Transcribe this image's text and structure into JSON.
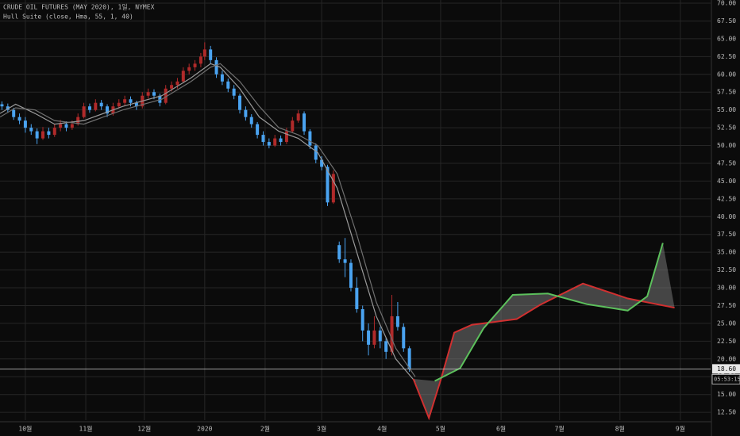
{
  "chart_data": {
    "type": "candlestick",
    "title": "CRUDE OIL FUTURES (MAY 2020), 1일, NYMEX",
    "subtitle": "Hull Suite (close, Hma, 55, 1, 40)",
    "up_color": "#b02a2a",
    "down_color": "#4aa3f0",
    "x": [
      -12,
      -9,
      -6,
      -3,
      0,
      3,
      6,
      9,
      12,
      15,
      18,
      21,
      24,
      27,
      30,
      33,
      36,
      39,
      42,
      45,
      48,
      51,
      54,
      57,
      60,
      63,
      66,
      69,
      72,
      75,
      78,
      81,
      84,
      87,
      90,
      92,
      95,
      98,
      101,
      104,
      107,
      110,
      113,
      116,
      119,
      122,
      125,
      128,
      131,
      134,
      137,
      140,
      143,
      146,
      149,
      152,
      155,
      158,
      161,
      164,
      167,
      170,
      173,
      176,
      179,
      182,
      185,
      188,
      191,
      194,
      197
    ],
    "open": [
      55.8,
      55.5,
      55.0,
      54.0,
      53.5,
      52.5,
      52.0,
      51.0,
      52.0,
      51.5,
      52.5,
      53.0,
      52.5,
      53.0,
      54.0,
      55.5,
      55.0,
      56.0,
      55.5,
      54.5,
      55.5,
      56.0,
      56.5,
      56.0,
      55.5,
      57.0,
      57.5,
      57.0,
      56.0,
      58.0,
      58.5,
      59.0,
      60.5,
      61.0,
      61.5,
      62.5,
      63.5,
      62.0,
      60.0,
      59.0,
      58.0,
      57.0,
      55.0,
      54.0,
      53.0,
      51.5,
      50.5,
      50.0,
      51.0,
      50.5,
      52.0,
      53.5,
      54.5,
      52.0,
      50.0,
      48.0,
      47.0,
      42.0,
      36.0,
      34.0,
      33.5,
      30.0,
      27.0,
      24.0,
      22.0,
      24.0,
      22.5,
      21.0,
      26.0,
      24.5,
      21.5
    ],
    "high": [
      56.2,
      55.9,
      55.3,
      54.5,
      54.0,
      53.0,
      52.4,
      52.6,
      52.5,
      53.0,
      53.6,
      53.4,
      53.5,
      54.5,
      56.0,
      55.9,
      56.5,
      56.4,
      55.8,
      56.0,
      56.5,
      57.0,
      56.9,
      56.3,
      57.5,
      58.0,
      57.9,
      57.3,
      58.5,
      59.0,
      59.5,
      61.0,
      61.5,
      62.0,
      63.0,
      64.5,
      64.0,
      62.4,
      60.5,
      59.4,
      58.5,
      57.3,
      55.5,
      54.4,
      53.3,
      52.0,
      51.0,
      51.5,
      51.4,
      52.5,
      54.0,
      55.0,
      54.8,
      52.3,
      50.3,
      48.5,
      47.3,
      46.5,
      36.5,
      37.0,
      34.0,
      31.5,
      27.5,
      25.0,
      26.0,
      24.5,
      23.0,
      29.0,
      28.0,
      25.0,
      21.8
    ],
    "low": [
      55.0,
      54.6,
      53.6,
      53.0,
      51.8,
      51.5,
      50.2,
      50.8,
      51.0,
      51.2,
      52.0,
      52.0,
      52.2,
      52.8,
      53.8,
      54.6,
      54.8,
      55.0,
      54.0,
      54.2,
      55.2,
      55.6,
      55.5,
      55.0,
      55.2,
      56.6,
      56.5,
      55.5,
      55.8,
      57.6,
      58.0,
      58.8,
      60.0,
      60.5,
      61.0,
      62.0,
      61.5,
      59.5,
      58.5,
      57.5,
      56.5,
      54.5,
      53.5,
      52.5,
      51.0,
      50.0,
      49.6,
      49.8,
      50.0,
      50.2,
      51.8,
      53.2,
      51.5,
      49.5,
      47.5,
      46.5,
      41.5,
      41.8,
      33.5,
      31.5,
      29.5,
      26.5,
      22.5,
      20.5,
      21.5,
      21.5,
      20.0,
      20.5,
      24.0,
      21.0,
      18.2
    ],
    "close": [
      55.5,
      55.0,
      54.0,
      53.5,
      52.5,
      52.0,
      51.0,
      52.0,
      51.5,
      52.5,
      53.0,
      52.5,
      53.0,
      54.0,
      55.5,
      55.0,
      56.0,
      55.5,
      54.5,
      55.5,
      56.0,
      56.5,
      56.0,
      55.5,
      57.0,
      57.5,
      57.0,
      56.0,
      58.0,
      58.5,
      59.0,
      60.5,
      61.0,
      61.5,
      62.5,
      63.5,
      62.0,
      60.0,
      59.0,
      58.0,
      57.0,
      55.0,
      54.0,
      53.0,
      51.5,
      50.5,
      50.0,
      51.0,
      50.5,
      52.0,
      53.5,
      54.5,
      52.0,
      50.0,
      48.0,
      47.0,
      42.0,
      46.0,
      34.0,
      33.5,
      30.0,
      27.0,
      24.0,
      22.0,
      24.0,
      22.5,
      21.0,
      26.0,
      24.5,
      21.5,
      18.6
    ],
    "lines": [
      {
        "color": "#9a9a9a",
        "x": [
          -13,
          -5,
          5,
          15,
          30,
          50,
          70,
          85,
          95,
          100,
          110,
          120,
          130,
          140,
          150,
          160,
          170,
          180,
          190,
          200
        ],
        "values": [
          54.5,
          55.8,
          54.5,
          53.0,
          53.5,
          55.5,
          57.0,
          59.5,
          61.5,
          61.0,
          58.0,
          54.0,
          52.0,
          51.0,
          49.0,
          44.0,
          35.0,
          26.0,
          20.0,
          16.8
        ]
      },
      {
        "color": "#707070",
        "x": [
          -13,
          -5,
          5,
          15,
          30,
          50,
          70,
          85,
          95,
          100,
          110,
          120,
          130,
          140,
          150,
          160,
          170,
          180,
          190,
          200
        ],
        "values": [
          54.0,
          55.3,
          55.0,
          53.5,
          53.0,
          55.0,
          56.5,
          59.0,
          61.0,
          61.5,
          59.0,
          55.5,
          52.5,
          51.5,
          50.0,
          46.0,
          37.5,
          28.0,
          21.5,
          17.5
        ]
      },
      {
        "color": "#d03030",
        "x": [
          199,
          207,
          213,
          220,
          229,
          252,
          264,
          286,
          309,
          333
        ],
        "values": [
          17.2,
          11.7,
          17.0,
          23.7,
          24.8,
          25.6,
          27.6,
          30.6,
          28.5,
          27.2
        ]
      },
      {
        "color": "#5cc05c",
        "x": [
          210,
          223,
          235,
          250,
          268,
          288,
          309,
          319,
          327
        ],
        "values": [
          16.9,
          18.7,
          24.3,
          29.0,
          29.2,
          27.7,
          26.8,
          28.8,
          36.3
        ]
      }
    ],
    "band_fill": "rgba(140,140,140,0.45)",
    "last_price": {
      "value": 18.6,
      "label": "18.60"
    },
    "countdown": "05:53:15",
    "xlim": [
      -13,
      351.5
    ],
    "ylim": [
      11.4,
      70.45
    ],
    "grid": true,
    "xticks": [
      {
        "value": 0,
        "label": "10월"
      },
      {
        "value": 31,
        "label": "11월"
      },
      {
        "value": 61,
        "label": "12월"
      },
      {
        "value": 92,
        "label": "2020"
      },
      {
        "value": 123,
        "label": "2월"
      },
      {
        "value": 152,
        "label": "3월"
      },
      {
        "value": 183,
        "label": "4월"
      },
      {
        "value": 213,
        "label": "5월"
      },
      {
        "value": 244,
        "label": "6월"
      },
      {
        "value": 274,
        "label": "7월"
      },
      {
        "value": 305,
        "label": "8월"
      },
      {
        "value": 336,
        "label": "9월"
      }
    ],
    "yticks": [
      {
        "value": 12.5,
        "label": "12.50"
      },
      {
        "value": 15,
        "label": "15.00"
      },
      {
        "value": 17.5,
        "label": "17.50"
      },
      {
        "value": 20,
        "label": "20.00"
      },
      {
        "value": 22.5,
        "label": "22.50"
      },
      {
        "value": 25,
        "label": "25.00"
      },
      {
        "value": 27.5,
        "label": "27.50"
      },
      {
        "value": 30,
        "label": "30.00"
      },
      {
        "value": 32.5,
        "label": "32.50"
      },
      {
        "value": 35,
        "label": "35.00"
      },
      {
        "value": 37.5,
        "label": "37.50"
      },
      {
        "value": 40,
        "label": "40.00"
      },
      {
        "value": 42.5,
        "label": "42.50"
      },
      {
        "value": 45,
        "label": "45.00"
      },
      {
        "value": 47.5,
        "label": "47.50"
      },
      {
        "value": 50,
        "label": "50.00"
      },
      {
        "value": 52.5,
        "label": "52.50"
      },
      {
        "value": 55,
        "label": "55.00"
      },
      {
        "value": 57.5,
        "label": "57.50"
      },
      {
        "value": 60,
        "label": "60.00"
      },
      {
        "value": 62.5,
        "label": "62.50"
      },
      {
        "value": 65,
        "label": "65.00"
      },
      {
        "value": 67.5,
        "label": "67.50"
      },
      {
        "value": 70,
        "label": "70.00"
      }
    ]
  }
}
